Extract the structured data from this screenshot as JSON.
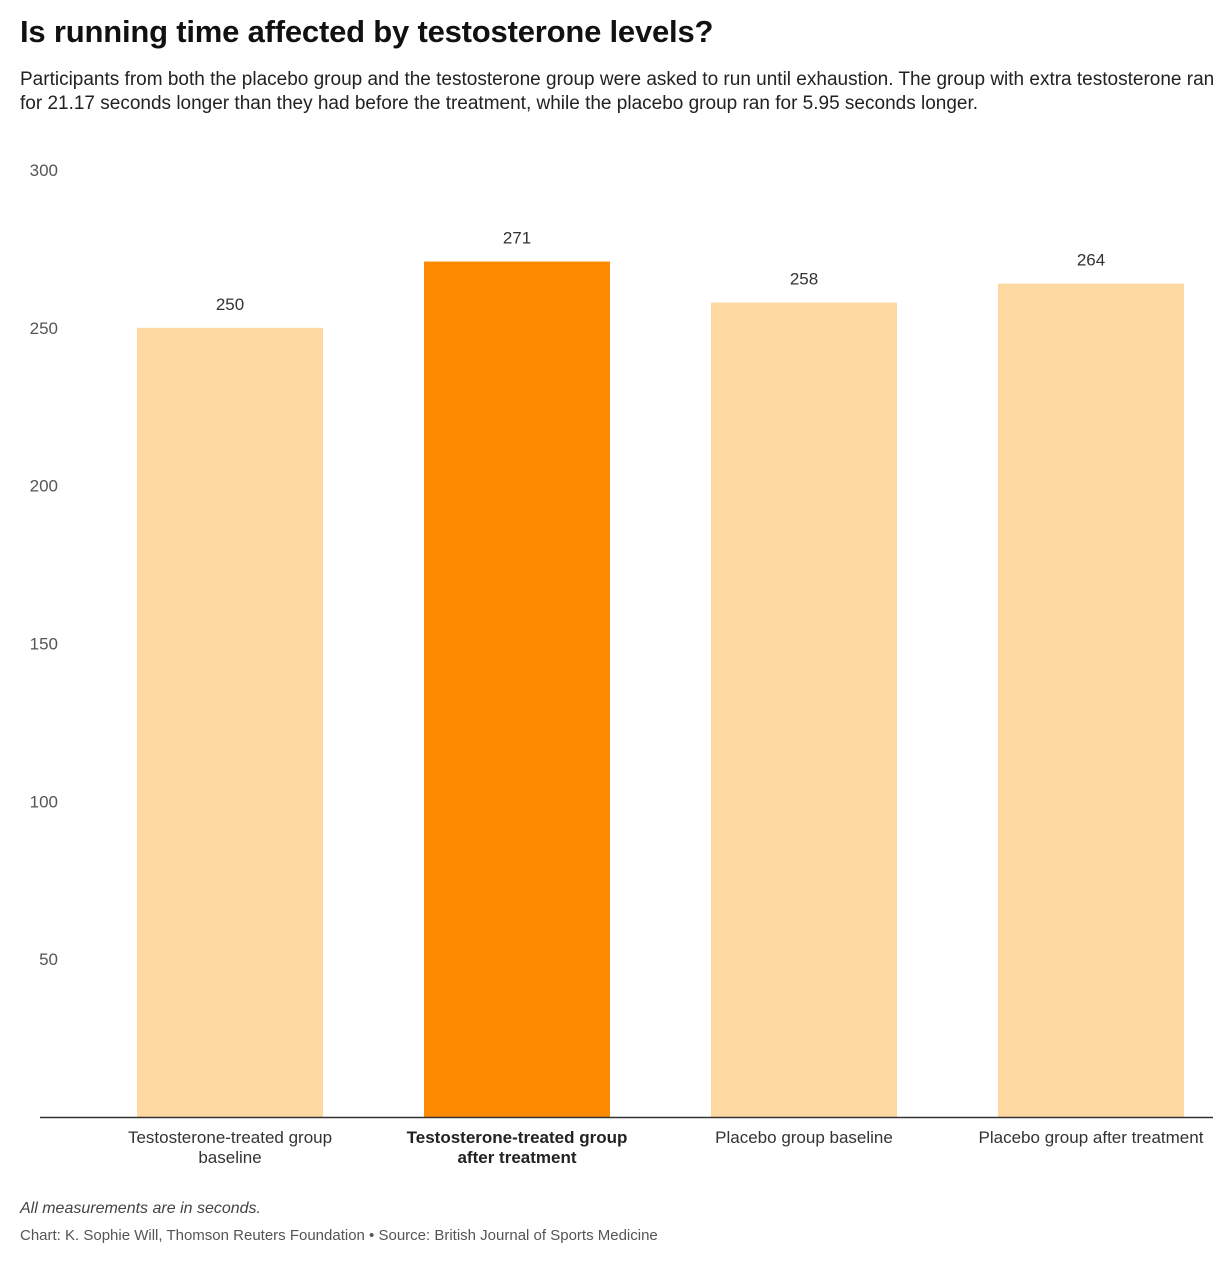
{
  "header": {
    "title": "Is running time affected by testosterone levels?",
    "subtitle": "Participants from both the placebo group and the testosterone group were asked to run until exhaustion. The group with extra testosterone ran for 21.17 seconds longer than they had before the treatment, while the placebo group ran for 5.95 seconds longer."
  },
  "chart_data": {
    "type": "bar",
    "categories": [
      [
        "Testosterone-treated group",
        "baseline"
      ],
      [
        "Testosterone-treated group",
        "after treatment"
      ],
      [
        "Placebo group baseline"
      ],
      [
        "Placebo group after treatment"
      ]
    ],
    "values": [
      250,
      271,
      258,
      264
    ],
    "data_labels": [
      "250",
      "271",
      "258",
      "264"
    ],
    "highlight_index": 1,
    "colors": {
      "bar": "#fdd8a0",
      "highlight": "#fd8a00",
      "axis": "#333333"
    },
    "ylim": [
      0,
      300
    ],
    "y_ticks": [
      50,
      100,
      150,
      200,
      250,
      300
    ],
    "grid": false,
    "legend": "none"
  },
  "footer": {
    "note": "All measurements are in seconds.",
    "credit": "Chart: K. Sophie Will, Thomson Reuters Foundation • Source: British Journal of Sports Medicine"
  }
}
